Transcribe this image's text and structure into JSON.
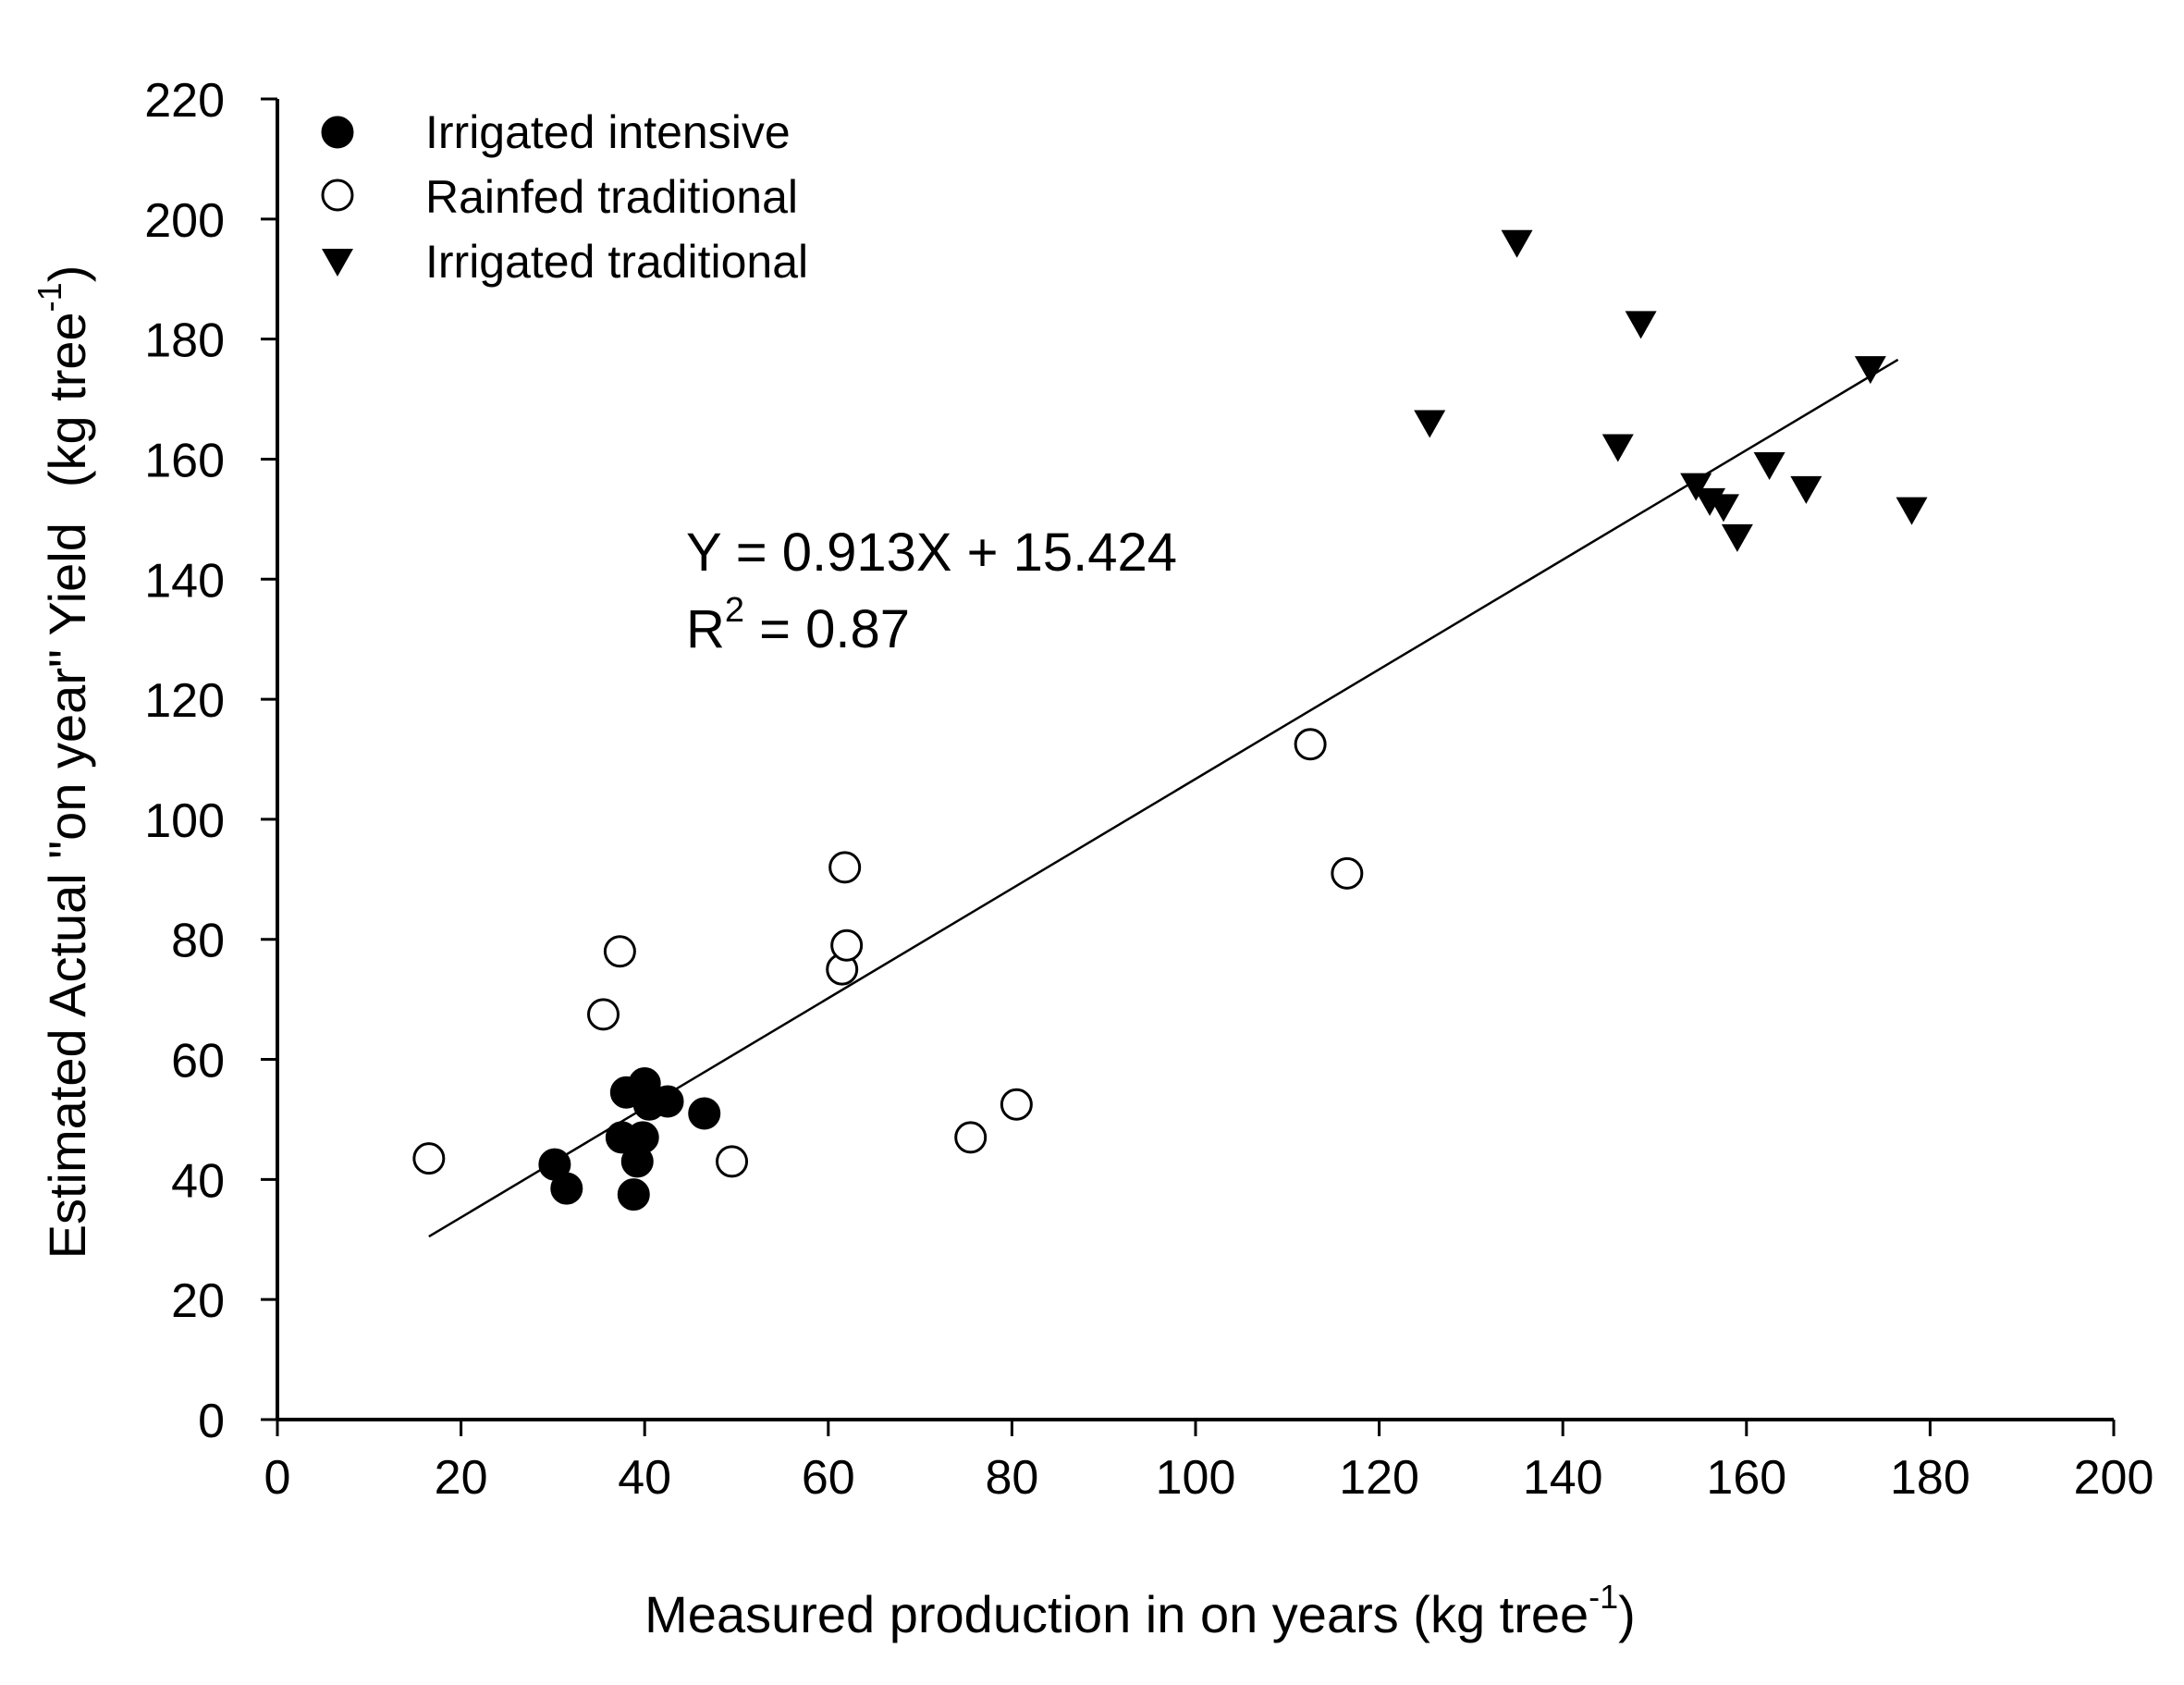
{
  "chart_data": {
    "type": "scatter",
    "xlabel": "Measured production in on years (kg tree",
    "xlabel_sup": "-1",
    "xlabel_end": ")",
    "ylabel": "Estimated Actual \"on year\" Yield",
    "ylabel_unit": "(kg tree",
    "ylabel_sup": "-1",
    "ylabel_end": ")",
    "xlim": [
      0,
      200
    ],
    "ylim": [
      0,
      220
    ],
    "xticks": [
      0,
      20,
      40,
      60,
      80,
      100,
      120,
      140,
      160,
      180,
      200
    ],
    "yticks": [
      0,
      20,
      40,
      60,
      80,
      100,
      120,
      140,
      160,
      180,
      200,
      220
    ],
    "grid": false,
    "legend_position": "top-left",
    "series": [
      {
        "name": "Irrigated intensive",
        "marker": "filled-circle",
        "points": [
          [
            30.2,
            42.5
          ],
          [
            31.5,
            38.5
          ],
          [
            37.5,
            47
          ],
          [
            38,
            54.5
          ],
          [
            38.8,
            37.5
          ],
          [
            39.2,
            43
          ],
          [
            39.8,
            47
          ],
          [
            40,
            56
          ],
          [
            40.5,
            52.5
          ],
          [
            42.5,
            53
          ],
          [
            46.5,
            51
          ]
        ]
      },
      {
        "name": "Rainfed traditional",
        "marker": "open-circle",
        "points": [
          [
            16.5,
            43.5
          ],
          [
            35.5,
            67.5
          ],
          [
            37.3,
            78
          ],
          [
            49.5,
            43
          ],
          [
            61.5,
            75
          ],
          [
            61.8,
            92
          ],
          [
            62,
            79
          ],
          [
            75.5,
            47
          ],
          [
            80.5,
            52.5
          ],
          [
            112.5,
            112.5
          ],
          [
            116.5,
            91
          ]
        ]
      },
      {
        "name": "Irrigated traditional",
        "marker": "filled-triangle-down",
        "points": [
          [
            125.5,
            166
          ],
          [
            135,
            196
          ],
          [
            146,
            162
          ],
          [
            148.5,
            182.5
          ],
          [
            154.5,
            155.5
          ],
          [
            156,
            153
          ],
          [
            157.5,
            152
          ],
          [
            159,
            147
          ],
          [
            162.5,
            159
          ],
          [
            166.5,
            155
          ],
          [
            173.5,
            175
          ],
          [
            178,
            151.5
          ]
        ]
      }
    ],
    "regression": {
      "slope": 0.913,
      "intercept": 15.424,
      "x_range": [
        16.5,
        176.5
      ],
      "equation_label": "Y = 0.913X + 15.424",
      "r2_prefix": "R",
      "r2_sup": "2",
      "r2_value": " = 0.87"
    }
  }
}
